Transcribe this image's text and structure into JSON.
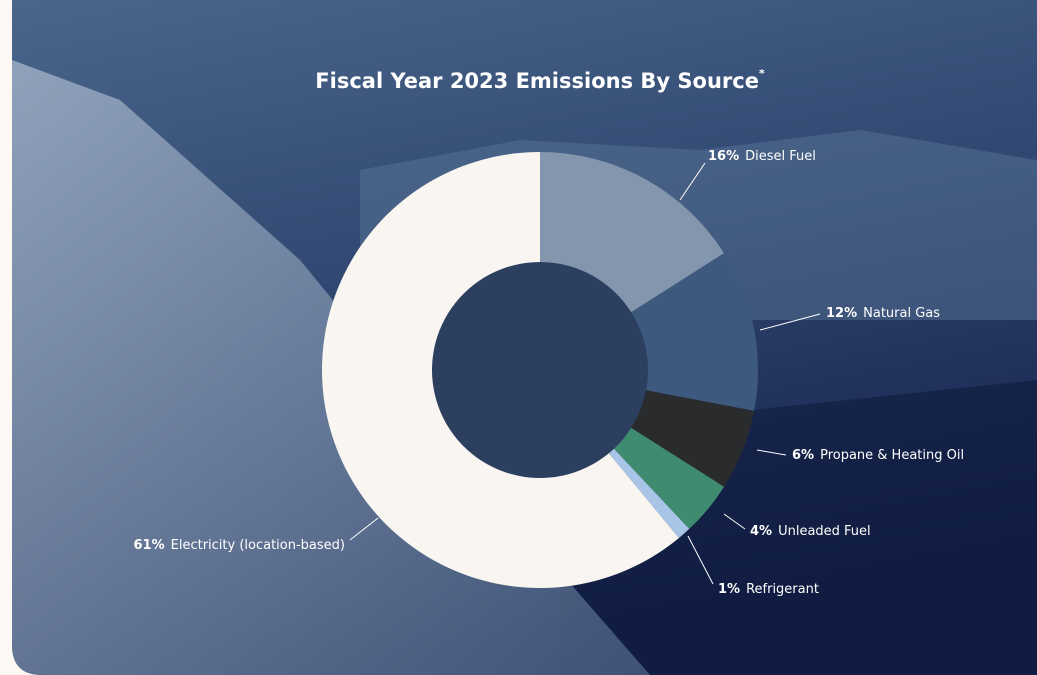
{
  "chart_data": {
    "type": "donut",
    "title": "Fiscal Year 2023 Emissions By Source",
    "title_note": "*",
    "categories": [
      "Diesel Fuel",
      "Natural Gas",
      "Propane & Heating Oil",
      "Unleaded Fuel",
      "Refrigerant",
      "Electricity (location-based)"
    ],
    "values": [
      16,
      12,
      6,
      4,
      1,
      61
    ],
    "value_labels": [
      "16%",
      "12%",
      "6%",
      "4%",
      "1%",
      "61%"
    ],
    "colors": [
      "#8496ae",
      "#3d5a7e",
      "#2a2b2d",
      "#3f8b6f",
      "#a8c4e6",
      "#f9f5f0"
    ]
  }
}
